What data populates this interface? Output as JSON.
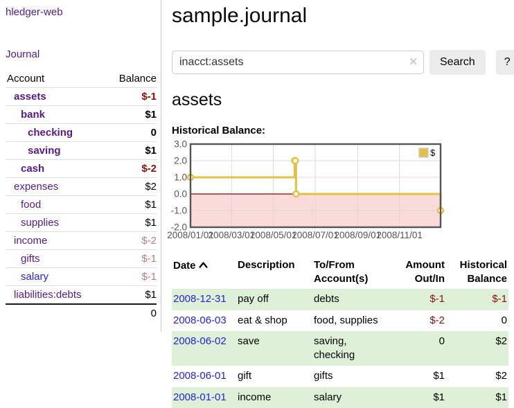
{
  "app_title": "hledger-web",
  "sidebar": {
    "journal_link": "Journal",
    "accounts": {
      "header_account": "Account",
      "header_balance": "Balance",
      "rows": [
        {
          "name": "assets",
          "balance": "$-1",
          "depth": 1,
          "bold": true,
          "balance_style": "negative-strong",
          "link_style": "purple"
        },
        {
          "name": "bank",
          "balance": "$1",
          "depth": 2,
          "bold": true,
          "balance_style": "normal",
          "link_style": "purple"
        },
        {
          "name": "checking",
          "balance": "0",
          "depth": 3,
          "bold": true,
          "balance_style": "normal",
          "link_style": "purple"
        },
        {
          "name": "saving",
          "balance": "$1",
          "depth": 3,
          "bold": true,
          "balance_style": "normal",
          "link_style": "purple"
        },
        {
          "name": "cash",
          "balance": "$-2",
          "depth": 2,
          "bold": true,
          "balance_style": "negative-strong",
          "link_style": "purple"
        },
        {
          "name": "expenses",
          "balance": "$2",
          "depth": 1,
          "bold": false,
          "balance_style": "normal",
          "link_style": "purple"
        },
        {
          "name": "food",
          "balance": "$1",
          "depth": 2,
          "bold": false,
          "balance_style": "normal",
          "link_style": "purple"
        },
        {
          "name": "supplies",
          "balance": "$1",
          "depth": 2,
          "bold": false,
          "balance_style": "normal",
          "link_style": "purple"
        },
        {
          "name": "income",
          "balance": "$-2",
          "depth": 1,
          "bold": false,
          "balance_style": "negative-muted",
          "link_style": "purple"
        },
        {
          "name": "gifts",
          "balance": "$-1",
          "depth": 2,
          "bold": false,
          "balance_style": "negative-muted",
          "link_style": "purple"
        },
        {
          "name": "salary",
          "balance": "$-1",
          "depth": 2,
          "bold": false,
          "balance_style": "negative-muted",
          "link_style": "blue"
        },
        {
          "name": "liabilities:debts",
          "balance": "$1",
          "depth": 1,
          "bold": false,
          "balance_style": "normal",
          "link_style": "purple"
        }
      ],
      "total": "0"
    }
  },
  "main": {
    "title": "sample.journal",
    "search": {
      "value": "inacct:assets",
      "clear_icon": "✕",
      "search_button": "Search",
      "help_button": "?"
    },
    "account_heading": "assets",
    "chart_label": "Historical Balance:"
  },
  "chart_data": {
    "type": "line",
    "step": true,
    "title": "Historical Balance",
    "series": [
      {
        "name": "$",
        "points": [
          [
            "2008-01-01",
            1
          ],
          [
            "2008-06-01",
            2
          ],
          [
            "2008-06-02",
            2
          ],
          [
            "2008-06-03",
            0
          ],
          [
            "2008-12-31",
            -1
          ]
        ]
      }
    ],
    "xlim": [
      "2008-01-01",
      "2008-12-31"
    ],
    "ylim": [
      -2,
      3
    ],
    "yticks": [
      "3.0",
      "2.0",
      "1.0",
      "0.0",
      "-1.0",
      "-2.0"
    ],
    "xticks": [
      "2008/01/01",
      "2008/03/01",
      "2008/05/01",
      "2008/07/01",
      "2008/09/01",
      "2008/11/01"
    ],
    "legend": "$",
    "legend_position": "top-right",
    "grid": true,
    "colors": {
      "line": "#e4bf45",
      "marker_fill": "#ffffff",
      "negative_region": "#fbdada",
      "zero_line": "#8b0000",
      "grid": "#d9d9d9",
      "border": "#545454",
      "tick_text": "#545454",
      "legend_border": "#cccccc"
    }
  },
  "register": {
    "headers": {
      "date": "Date",
      "description": "Description",
      "accounts": "To/From Account(s)",
      "amount": "Amount Out/In",
      "balance": "Historical Balance"
    },
    "rows": [
      {
        "date": "2008-12-31",
        "description": "pay off",
        "accounts": "debts",
        "amount": "$-1",
        "amount_style": "negative",
        "balance": "$-1",
        "balance_style": "negative"
      },
      {
        "date": "2008-06-03",
        "description": "eat & shop",
        "accounts": "food, supplies",
        "amount": "$-2",
        "amount_style": "negative",
        "balance": "0",
        "balance_style": "normal"
      },
      {
        "date": "2008-06-02",
        "description": "save",
        "accounts": "saving, checking",
        "amount": "0",
        "amount_style": "normal",
        "balance": "$2",
        "balance_style": "normal"
      },
      {
        "date": "2008-06-01",
        "description": "gift",
        "accounts": "gifts",
        "amount": "$1",
        "amount_style": "normal",
        "balance": "$2",
        "balance_style": "normal"
      },
      {
        "date": "2008-01-01",
        "description": "income",
        "accounts": "salary",
        "amount": "$1",
        "amount_style": "normal",
        "balance": "$1",
        "balance_style": "normal"
      }
    ]
  },
  "colors": {
    "link_purple": "#551a8b",
    "link_blue": "#2323d8",
    "negative_strong": "#8b0f05",
    "negative_muted": "#b97f7f",
    "row_stripe_green": "#dff0d8",
    "button_bg": "#ececec"
  }
}
